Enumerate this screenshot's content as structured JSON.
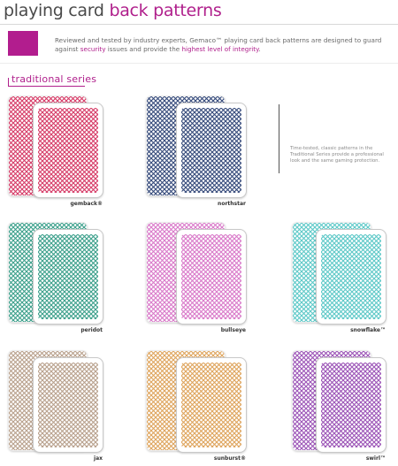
{
  "header": {
    "title_part1": "playing card",
    "title_part2": "back patterns"
  },
  "intro": {
    "text_before": "Reviewed and tested by industry experts, Gemaco™ playing card back patterns are designed to guard against",
    "highlight1": "security",
    "text_mid": "issues and provide the",
    "highlight2": "highest level of integrity",
    "text_end": "."
  },
  "section": {
    "title": "traditional series"
  },
  "side_note": "Time-tested, classic patterns in the Traditional Series provide a professional look and the same gaming protection.",
  "cards": [
    {
      "label": "gemback®",
      "color": "#d63a66"
    },
    {
      "label": "northstar",
      "color": "#34497a"
    },
    {
      "label": "peridot",
      "color": "#3a9f8a"
    },
    {
      "label": "bullseye",
      "color": "#d979c9"
    },
    {
      "label": "snowflake™",
      "color": "#5cc8c7"
    },
    {
      "label": "jax",
      "color": "#b8a08c"
    },
    {
      "label": "sunburst®",
      "color": "#dea45c"
    },
    {
      "label": "swirl™",
      "color": "#9b53b6"
    }
  ],
  "colors": {
    "accent": "#b0208c",
    "swatch": "#b21d8e"
  }
}
